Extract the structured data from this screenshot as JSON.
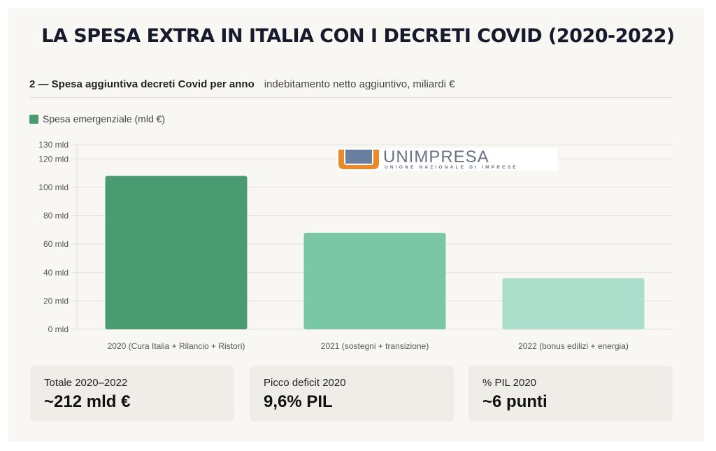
{
  "title": "LA SPESA EXTRA IN ITALIA CON I DECRETI COVID (2020-2022)",
  "subhead": {
    "title": "2 — Spesa aggiuntiva decreti Covid per anno",
    "note": "indebitamento netto aggiuntivo, miliardi €"
  },
  "logo": {
    "name": "UNIMPRESA",
    "tagline": "UNIONE NAZIONALE DI IMPRESE"
  },
  "chart_data": {
    "type": "bar",
    "categories": [
      "2020 (Cura Italia + Rilancio + Ristori)",
      "2021 (sostegni + transizione)",
      "2022 (bonus edilizi + energia)"
    ],
    "series": [
      {
        "name": "Spesa emergenziale (mld €)",
        "values": [
          108,
          68,
          36
        ]
      }
    ],
    "colors": [
      "#4a9a72",
      "#7ac7a6",
      "#acdfcb"
    ],
    "yticks": [
      0,
      20,
      40,
      60,
      80,
      100,
      120,
      130
    ],
    "ytick_suffix": " mld",
    "ylim": [
      0,
      130
    ],
    "grid": true,
    "legend": "top-left"
  },
  "stats": [
    {
      "label": "Totale 2020–2022",
      "value": "~212 mld €"
    },
    {
      "label": "Picco deficit 2020",
      "value": "9,6% PIL"
    },
    {
      "label": "% PIL 2020",
      "value": "~6 punti"
    }
  ]
}
